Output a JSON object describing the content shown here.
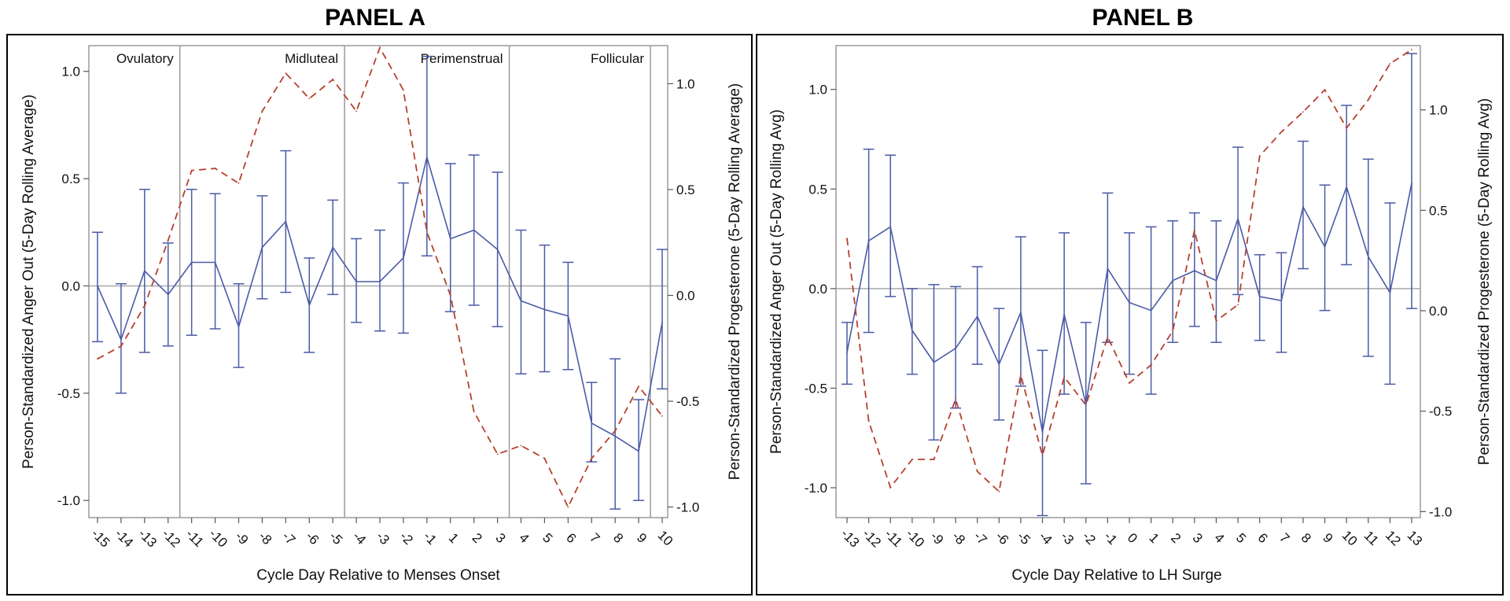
{
  "figure": {
    "panel_a_title": "PANEL A",
    "panel_b_title": "PANEL B"
  },
  "colors": {
    "anger": "#4a5ba6",
    "progesterone": "#b5412e",
    "frame": "#000000",
    "plot_frame": "#9a9a9a",
    "zero_line": "#a8a8a8"
  },
  "chart_data": [
    {
      "type": "line",
      "panel": "PANEL A",
      "title": "PANEL A",
      "xlabel": "Cycle Day Relative to Menses Onset",
      "ylabel": "Person-Standardized Anger Out (5-Day Rolling Average)",
      "y2label": "Person-Standardized Progesterone (5-Day Rolling Average)",
      "x": [
        -15,
        -14,
        -13,
        -12,
        -11,
        -10,
        -9,
        -8,
        -7,
        -6,
        -5,
        -4,
        -3,
        -2,
        -1,
        1,
        2,
        3,
        4,
        5,
        6,
        7,
        8,
        9,
        10
      ],
      "x_tick_labels": [
        "-15",
        "-14",
        "-13",
        "-12",
        "-11",
        "-10",
        "-9",
        "-8",
        "-7",
        "-6",
        "-5",
        "-4",
        "-3",
        "-2",
        "-1",
        "1",
        "2",
        "3",
        "4",
        "5",
        "6",
        "7",
        "8",
        "9",
        "10"
      ],
      "ylim": [
        -1.08,
        1.12
      ],
      "y_ticks": [
        1.0,
        0.5,
        0.0,
        -0.5,
        -1.0
      ],
      "y_tick_labels": [
        "1.0",
        "0.5",
        "0.0",
        "-0.5",
        "-1.0"
      ],
      "y2lim": [
        -1.05,
        1.18
      ],
      "y2_ticks": [
        1.0,
        0.5,
        0.0,
        -0.5,
        -1.0
      ],
      "y2_tick_labels": [
        "1.0",
        "0.5",
        "0.0",
        "-0.5",
        "-1.0"
      ],
      "phase_boundaries_after_index": [
        3,
        10,
        17,
        23
      ],
      "phases": [
        {
          "label": "Ovulatory",
          "start": 0,
          "end": 3
        },
        {
          "label": "Midluteal",
          "start": 4,
          "end": 10
        },
        {
          "label": "Perimenstrual",
          "start": 11,
          "end": 17
        },
        {
          "label": "Follicular",
          "start": 18,
          "end": 23
        }
      ],
      "series": [
        {
          "name": "Anger Out",
          "axis": "left",
          "style": "solid",
          "values": [
            0.0,
            -0.25,
            0.07,
            -0.04,
            0.11,
            0.11,
            -0.19,
            0.18,
            0.3,
            -0.09,
            0.18,
            0.02,
            0.02,
            0.13,
            0.6,
            0.22,
            0.26,
            0.17,
            -0.07,
            -0.11,
            -0.14,
            -0.64,
            -0.7,
            -0.77,
            -0.17
          ],
          "lower": [
            -0.26,
            -0.5,
            -0.31,
            -0.28,
            -0.23,
            -0.2,
            -0.38,
            -0.06,
            -0.03,
            -0.31,
            -0.04,
            -0.17,
            -0.21,
            -0.22,
            0.14,
            -0.12,
            -0.09,
            -0.19,
            -0.41,
            -0.4,
            -0.39,
            -0.82,
            -1.04,
            -1.0,
            -0.48
          ],
          "upper": [
            0.25,
            0.01,
            0.45,
            0.2,
            0.45,
            0.43,
            0.01,
            0.42,
            0.63,
            0.13,
            0.4,
            0.22,
            0.26,
            0.48,
            1.07,
            0.57,
            0.61,
            0.53,
            0.26,
            0.19,
            0.11,
            -0.45,
            -0.34,
            -0.53,
            0.17
          ]
        },
        {
          "name": "Progesterone",
          "axis": "right",
          "style": "dashed",
          "values": [
            -0.3,
            -0.24,
            -0.05,
            0.26,
            0.59,
            0.6,
            0.53,
            0.87,
            1.05,
            0.93,
            1.02,
            0.87,
            1.17,
            0.97,
            0.3,
            0.0,
            -0.55,
            -0.75,
            -0.71,
            -0.77,
            -1.0,
            -0.77,
            -0.64,
            -0.43,
            -0.57
          ]
        }
      ]
    },
    {
      "type": "line",
      "panel": "PANEL B",
      "title": "PANEL B",
      "xlabel": "Cycle Day Relative to LH Surge",
      "ylabel": "Person-Standardized Anger Out (5-Day Rolling Avg)",
      "y2label": "Person-Standardized Progesterone (5-Day Rolling Avg)",
      "x": [
        -13,
        -12,
        -11,
        -10,
        -9,
        -8,
        -7,
        -6,
        -5,
        -4,
        -3,
        -2,
        -1,
        0,
        1,
        2,
        3,
        4,
        5,
        6,
        7,
        8,
        9,
        10,
        11,
        12,
        13
      ],
      "x_tick_labels": [
        "-13",
        "-12",
        "-11",
        "-10",
        "-9",
        "-8",
        "-7",
        "-6",
        "-5",
        "-4",
        "-3",
        "-2",
        "-1",
        "0",
        "1",
        "2",
        "3",
        "4",
        "5",
        "6",
        "7",
        "8",
        "9",
        "10",
        "11",
        "12",
        "13"
      ],
      "ylim": [
        -1.15,
        1.22
      ],
      "y_ticks": [
        1.0,
        0.5,
        0.0,
        -0.5,
        -1.0
      ],
      "y_tick_labels": [
        "1.0",
        "0.5",
        "0.0",
        "-0.5",
        "-1.0"
      ],
      "y2lim": [
        -1.03,
        1.32
      ],
      "y2_ticks": [
        1.0,
        0.5,
        0.0,
        -0.5,
        -1.0
      ],
      "y2_tick_labels": [
        "1.0",
        "0.5",
        "0.0",
        "-0.5",
        "-1.0"
      ],
      "series": [
        {
          "name": "Anger Out",
          "axis": "left",
          "style": "solid",
          "values": [
            -0.32,
            0.24,
            0.31,
            -0.21,
            -0.37,
            -0.3,
            -0.14,
            -0.38,
            -0.12,
            -0.72,
            -0.13,
            -0.58,
            0.1,
            -0.07,
            -0.11,
            0.04,
            0.09,
            0.04,
            0.35,
            -0.04,
            -0.06,
            0.41,
            0.21,
            0.51,
            0.16,
            -0.02,
            0.53
          ],
          "lower": [
            -0.48,
            -0.22,
            -0.04,
            -0.43,
            -0.76,
            -0.6,
            -0.38,
            -0.66,
            -0.49,
            -1.14,
            -0.53,
            -0.98,
            -0.27,
            -0.43,
            -0.53,
            -0.27,
            -0.19,
            -0.27,
            -0.03,
            -0.26,
            -0.32,
            0.1,
            -0.11,
            0.12,
            -0.34,
            -0.48,
            -0.1
          ],
          "upper": [
            -0.17,
            0.7,
            0.67,
            0.0,
            0.02,
            0.01,
            0.11,
            -0.1,
            0.26,
            -0.31,
            0.28,
            -0.17,
            0.48,
            0.28,
            0.31,
            0.34,
            0.38,
            0.34,
            0.71,
            0.17,
            0.18,
            0.74,
            0.52,
            0.92,
            0.65,
            0.43,
            1.18
          ]
        },
        {
          "name": "Progesterone",
          "axis": "right",
          "style": "dashed",
          "values": [
            0.36,
            -0.55,
            -0.88,
            -0.74,
            -0.74,
            -0.44,
            -0.8,
            -0.9,
            -0.32,
            -0.72,
            -0.33,
            -0.47,
            -0.13,
            -0.36,
            -0.27,
            -0.1,
            0.4,
            -0.05,
            0.03,
            0.77,
            0.89,
            0.99,
            1.1,
            0.91,
            1.05,
            1.23,
            1.3
          ]
        }
      ]
    }
  ]
}
